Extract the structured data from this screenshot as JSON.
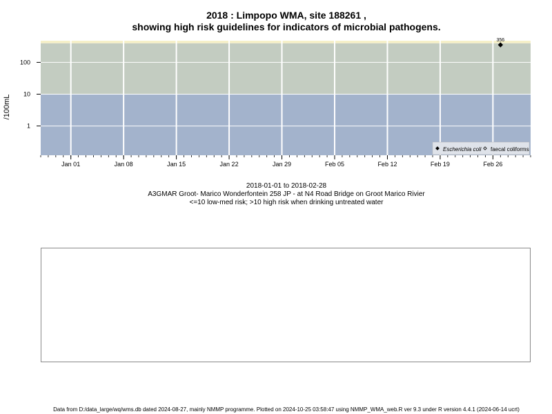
{
  "title_line1": "2018 : Limpopo WMA, site 188261 ,",
  "title_line2": "showing high risk guidelines for indicators of microbial pathogens.",
  "subtitle": {
    "date_range": "2018-01-01 to 2018-02-28",
    "site": "A3GMAR Groot- Marico Wonderfontein 258 JP - at N4 Road Bridge on Groot Marico Rivier",
    "risk_note": "<=10 low-med risk; >10 high risk when drinking untreated water"
  },
  "footer": "Data from D:/data_large/wq/wms.db dated 2024-08-27, mainly NMMP programme. Plotted on 2024-10-25 03:58:47 using NMMP_WMA_web.R ver 9.3 under R version 4.4.1 (2024-06-14 ucrt)",
  "colors": {
    "low_risk_band": "#a3b3cc",
    "high_risk_band": "#c3ccc1",
    "top_band": "#f6f0c8",
    "grid": "#ffffff"
  },
  "chart_data": {
    "type": "scatter",
    "ylabel": "/100mL",
    "yscale": "log",
    "ylim": [
      0.12,
      480
    ],
    "xlim": [
      "2017-12-28",
      "2018-03-03"
    ],
    "yticks": [
      1,
      10,
      100
    ],
    "ytick_labels": [
      "1",
      "10",
      "100"
    ],
    "xticks": [
      "2018-01-01",
      "2018-01-08",
      "2018-01-15",
      "2018-01-22",
      "2018-01-29",
      "2018-02-05",
      "2018-02-12",
      "2018-02-19",
      "2018-02-26"
    ],
    "xtick_labels": [
      "Jan 01",
      "Jan 08",
      "Jan 15",
      "Jan 22",
      "Jan 29",
      "Feb 05",
      "Feb 12",
      "Feb 19",
      "Feb 26"
    ],
    "bands": [
      {
        "from": 0.12,
        "to": 10,
        "color": "#a3b3cc"
      },
      {
        "from": 10,
        "to": 400,
        "color": "#c3ccc1"
      },
      {
        "from": 400,
        "to": 480,
        "color": "#f6f0c8"
      }
    ],
    "grid": true,
    "legend_position": "bottom-right",
    "series": [
      {
        "name": "Escherichia coli",
        "marker": "filled-diamond",
        "points": [
          {
            "x": "2018-02-27",
            "y": 356,
            "label": "356"
          }
        ]
      },
      {
        "name": "faecal coliforms",
        "marker": "open-diamond",
        "points": []
      }
    ]
  }
}
